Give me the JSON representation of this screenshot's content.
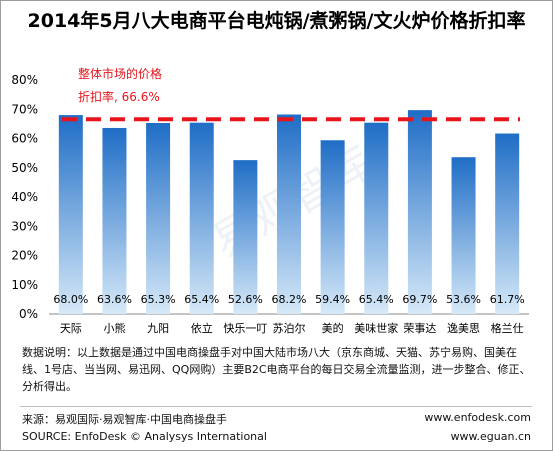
{
  "chart_data": {
    "type": "bar",
    "title": "2014年5月八大电商平台电炖锅/煮粥锅/文火炉价格折扣率",
    "categories": [
      "天际",
      "小熊",
      "九阳",
      "依立",
      "快乐一叮",
      "苏泊尔",
      "美的",
      "美味世家",
      "荣事达",
      "逸美思",
      "格兰仕"
    ],
    "values": [
      68.0,
      63.6,
      65.3,
      65.4,
      52.6,
      68.2,
      59.4,
      65.4,
      69.7,
      53.6,
      61.7
    ],
    "value_labels": [
      "68.0%",
      "63.6%",
      "65.3%",
      "65.4%",
      "52.6%",
      "68.2%",
      "59.4%",
      "65.4%",
      "69.7%",
      "53.6%",
      "61.7%"
    ],
    "yticks": [
      "0%",
      "10%",
      "20%",
      "30%",
      "40%",
      "50%",
      "60%",
      "70%",
      "80%"
    ],
    "ylim": [
      0,
      80
    ],
    "xlabel": "",
    "ylabel": "",
    "grid": false,
    "reference_line": {
      "value": 66.6,
      "label_line1": "整体市场的价格",
      "label_line2": "折扣率, 66.6%",
      "color": "#e8141b"
    },
    "bar_color_top": "#1f6dc6",
    "bar_color_bottom": "#d6e9f8"
  },
  "note": {
    "text": "数据说明：以上数据是通过中国电商操盘手对中国大陆市场八大（京东商城、天猫、苏宁易购、国美在线、1号店、当当网、易迅网、QQ网购）主要B2C电商平台的每日交易全流量监测，进一步整合、修正、分析得出。"
  },
  "watermark": "易观智库",
  "footer": {
    "source_cn": "来源：易观国际·易观智库·中国电商操盘手",
    "source_en": "SOURCE: EnfoDesk © Analysys International",
    "url1": "www.enfodesk.com",
    "url2": "www.eguan.cn"
  }
}
